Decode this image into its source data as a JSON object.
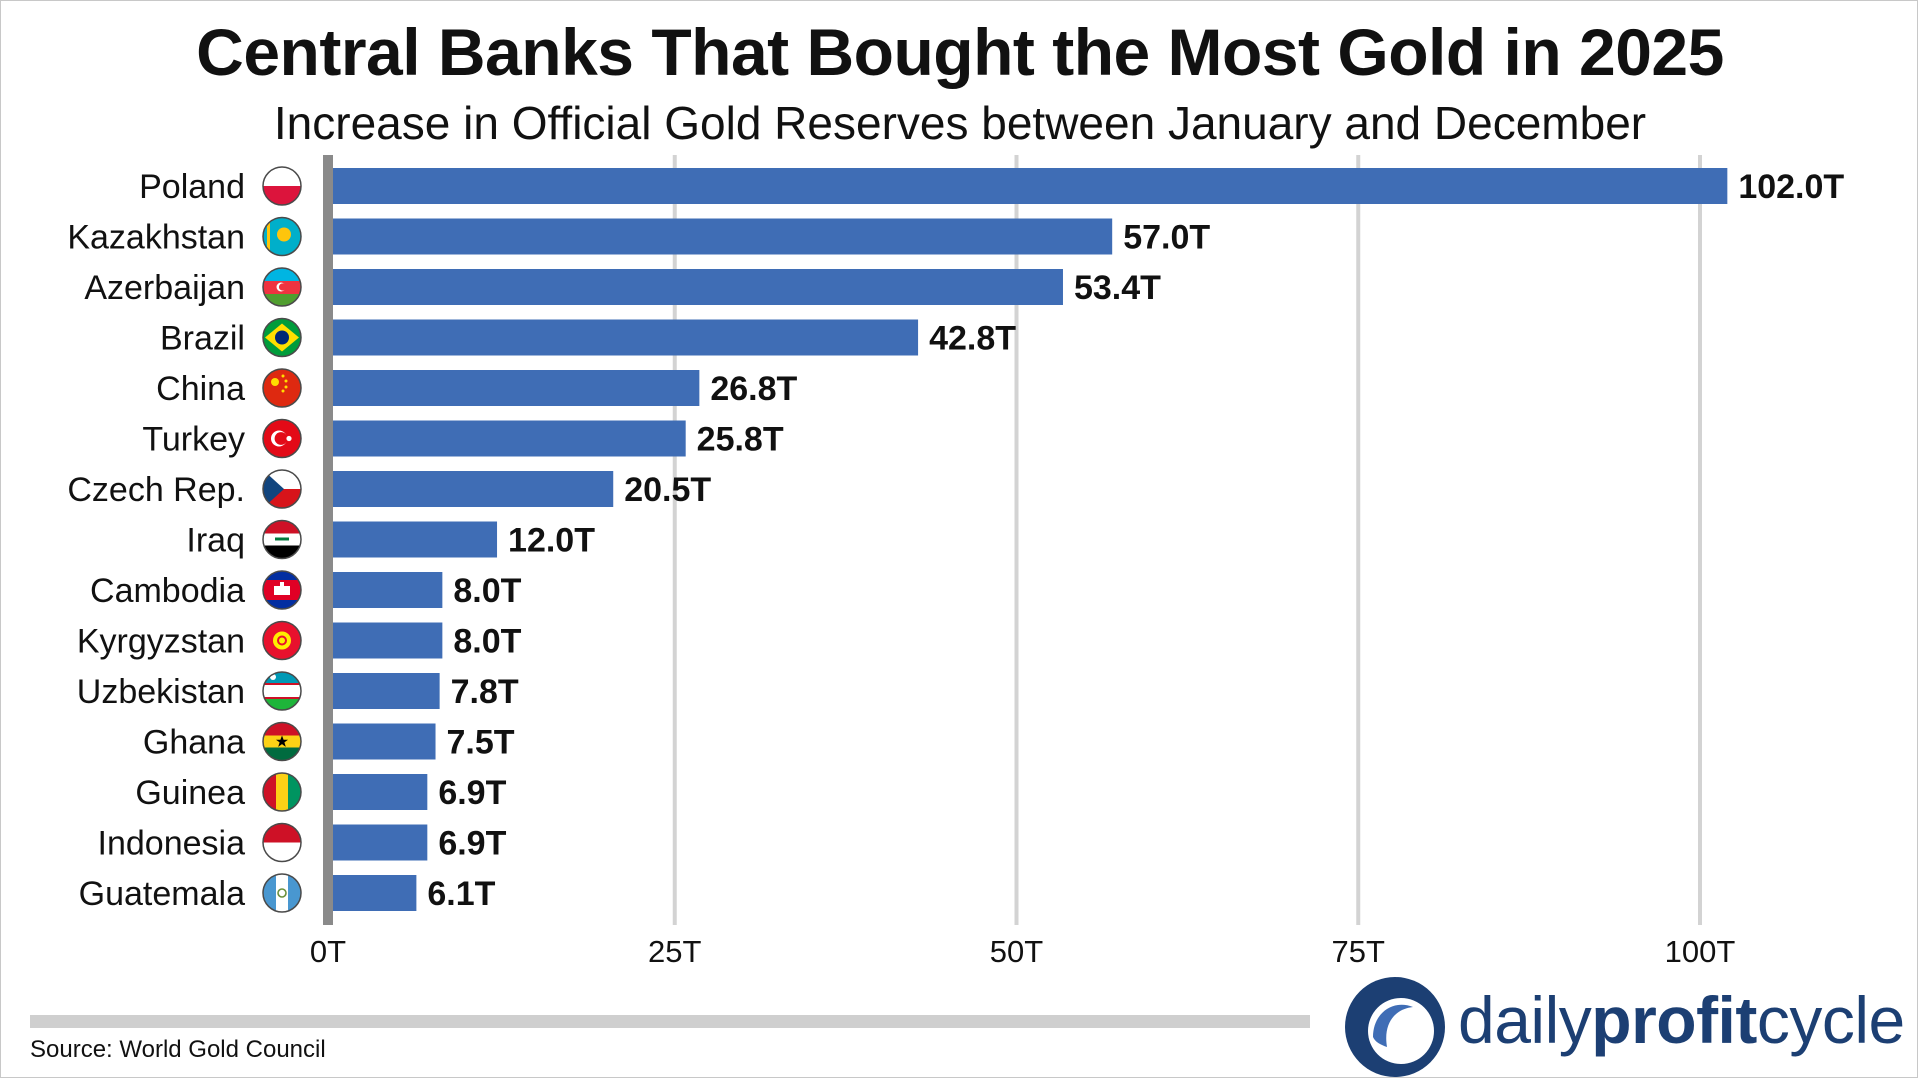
{
  "header": {
    "title": "Central Banks That Bought the Most Gold in 2025",
    "subtitle": "Increase in Official Gold Reserves between January and December"
  },
  "footer": {
    "source": "Source: World Gold Council",
    "brand_part1": "daily",
    "brand_part2": "profit",
    "brand_part3": "cycle"
  },
  "colors": {
    "bar": "#3f6db5",
    "grid": "#d3d3d3",
    "axis": "#8a8a8a",
    "brand": "#1c3f73",
    "logo_light": "#3f6db5",
    "source_rule": "#cfcfcf"
  },
  "chart_data": {
    "type": "bar",
    "orientation": "horizontal",
    "categories": [
      "Poland",
      "Kazakhstan",
      "Azerbaijan",
      "Brazil",
      "China",
      "Turkey",
      "Czech Rep.",
      "Iraq",
      "Cambodia",
      "Kyrgyzstan",
      "Uzbekistan",
      "Ghana",
      "Guinea",
      "Indonesia",
      "Guatemala"
    ],
    "values": [
      102.0,
      57.0,
      53.4,
      42.8,
      26.8,
      25.8,
      20.5,
      12.0,
      8.0,
      8.0,
      7.8,
      7.5,
      6.9,
      6.9,
      6.1
    ],
    "value_labels": [
      "102.0T",
      "57.0T",
      "53.4T",
      "42.8T",
      "26.8T",
      "25.8T",
      "20.5T",
      "12.0T",
      "8.0T",
      "8.0T",
      "7.8T",
      "7.5T",
      "6.9T",
      "6.9T",
      "6.1T"
    ],
    "flag_icons": [
      "poland-flag-icon",
      "kazakhstan-flag-icon",
      "azerbaijan-flag-icon",
      "brazil-flag-icon",
      "china-flag-icon",
      "turkey-flag-icon",
      "czech-flag-icon",
      "iraq-flag-icon",
      "cambodia-flag-icon",
      "kyrgyzstan-flag-icon",
      "uzbekistan-flag-icon",
      "ghana-flag-icon",
      "guinea-flag-icon",
      "indonesia-flag-icon",
      "guatemala-flag-icon"
    ],
    "x_ticks": [
      0,
      25,
      50,
      75,
      100
    ],
    "x_tick_labels": [
      "0T",
      "25T",
      "50T",
      "75T",
      "100T"
    ],
    "xlim": [
      0,
      104
    ],
    "xlabel": "",
    "ylabel": "",
    "grid": "vertical"
  }
}
